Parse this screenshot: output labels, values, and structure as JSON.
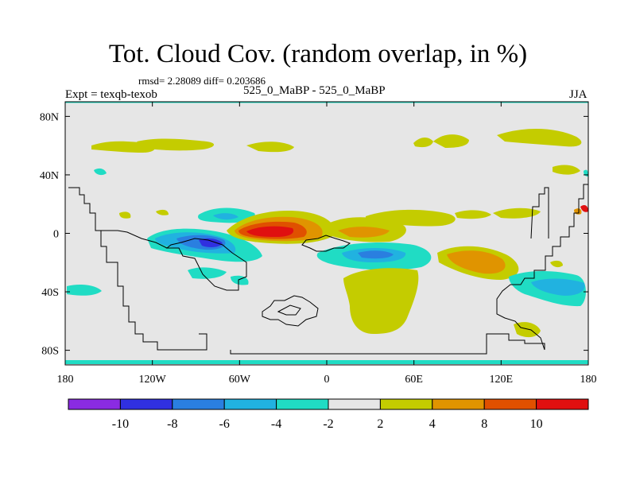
{
  "title": "Tot. Cloud Cov. (random overlap, in %)",
  "stats_line": "rmsd= 2.28089 diff= 0.203686",
  "left_label": "Expt = texqb-texob",
  "center_label": "525_0_MaBP - 525_0_MaBP",
  "right_label": "JJA",
  "colors": {
    "background_fill": "#e6e6e6",
    "coastline": "#000000",
    "frame": "#000000"
  },
  "chart_data": {
    "type": "heatmap",
    "projection": "cylindrical-equidistant",
    "x_axis": {
      "range": [
        -180,
        180
      ],
      "ticks": [
        -180,
        -120,
        -60,
        0,
        60,
        120,
        180
      ],
      "tick_labels": [
        "180",
        "120W",
        "60W",
        "0",
        "60E",
        "120E",
        "180"
      ]
    },
    "y_axis": {
      "range": [
        -90,
        90
      ],
      "ticks": [
        80,
        40,
        0,
        -40,
        -80
      ],
      "tick_labels": [
        "80N",
        "40N",
        "0",
        "40S",
        "80S"
      ]
    },
    "colorbar": {
      "orientation": "horizontal",
      "levels": [
        -10,
        -8,
        -6,
        -4,
        -2,
        2,
        4,
        8,
        10
      ],
      "labels": [
        "-10",
        "-8",
        "-6",
        "-4",
        "-2",
        "2",
        "4",
        "8",
        "10"
      ],
      "colors": [
        "#8a2be2",
        "#3030e0",
        "#2a7fe0",
        "#21b2e0",
        "#20dcc4",
        "#e6e6e6",
        "#c4cc00",
        "#e09400",
        "#e05000",
        "#e01010"
      ]
    },
    "regions": [
      {
        "name": "equatorial atlantic positive max",
        "level": 10,
        "lon": [
          -65,
          -10
        ],
        "lat": [
          -3,
          6
        ],
        "value": 10
      },
      {
        "name": "equatorial atlantic positive core",
        "level": 8,
        "lon": [
          -50,
          -20
        ],
        "lat": [
          -2,
          4
        ],
        "value": 11
      },
      {
        "name": "south pacific negative max",
        "level": -8,
        "lon": [
          -90,
          -65
        ],
        "lat": [
          -12,
          -3
        ],
        "value": -9
      },
      {
        "name": "indian ocean positive",
        "level": 4,
        "lon": [
          80,
          130
        ],
        "lat": [
          -22,
          -8
        ],
        "value": 6
      },
      {
        "name": "south atlantic positive plume",
        "level": 2,
        "lon": [
          15,
          60
        ],
        "lat": [
          -70,
          -18
        ],
        "value": 3
      },
      {
        "name": "equatorial indian negative",
        "level": -4,
        "lon": [
          10,
          70
        ],
        "lat": [
          -20,
          -7
        ],
        "value": -5
      }
    ]
  },
  "colorbar_ui": {
    "aria": "colorbar"
  }
}
